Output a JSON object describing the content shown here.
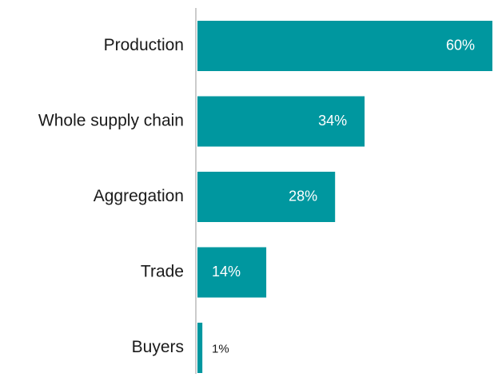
{
  "chart_data": {
    "type": "hbar",
    "categories": [
      "Production",
      "Whole supply chain",
      "Aggregation",
      "Trade",
      "Buyers"
    ],
    "values": [
      60,
      34,
      28,
      14,
      1
    ],
    "value_labels": [
      "60%",
      "34%",
      "28%",
      "14%",
      "1%"
    ],
    "color": "#00979f"
  }
}
